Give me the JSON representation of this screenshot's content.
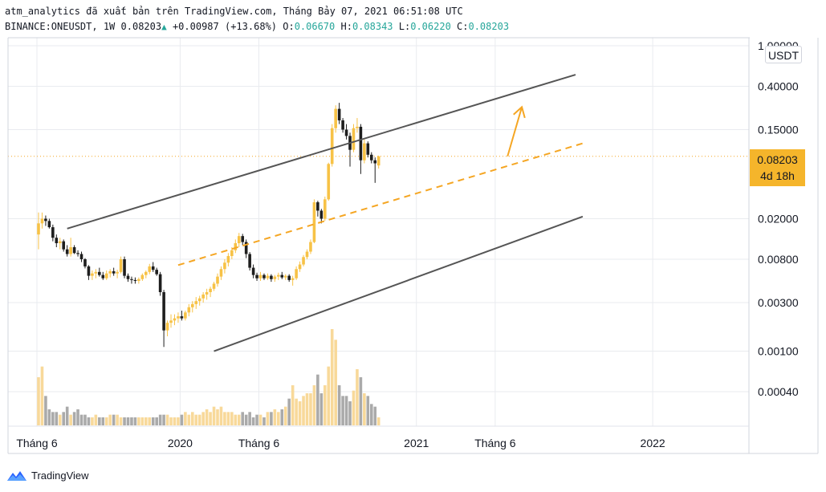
{
  "header": {
    "line1": "atm_analytics đã xuất bản trên TradingView.com, Tháng Bảy 07, 2021 06:51:08 UTC",
    "symbol": "BINANCE:ONEUSDT, 1W",
    "last": "0.08203",
    "change_arrow": "▲",
    "change": "+0.00987 (+13.68%)",
    "open_label": "O:",
    "open": "0.06670",
    "high_label": "H:",
    "high": "0.08343",
    "low_label": "L:",
    "low": "0.06220",
    "close_label": "C:",
    "close": "0.08203"
  },
  "price_pill": {
    "price": "0.08203",
    "countdown": "4d 18h"
  },
  "unit": "USDT",
  "footer": {
    "brand": "TradingView",
    "logo_icon": "tradingview-logo-icon"
  },
  "colors": {
    "bull": "#f7c246",
    "bear": "#1e1e1e",
    "vol_bull": "#f8d99a",
    "vol_bear": "#aaaaaa",
    "channel": "#555555",
    "midline": "#f5a623",
    "price_line": "#f5a623",
    "grid": "#e9ebef"
  },
  "chart_data": {
    "type": "candlestick",
    "symbol": "BINANCE:ONEUSDT",
    "interval": "1W",
    "y_scale": "log",
    "ylim": [
      0.00015,
      1.0
    ],
    "y_ticks": [
      "1.00000",
      "0.40000",
      "0.15000",
      "0.02000",
      "0.00800",
      "0.00300",
      "0.00100",
      "0.00040"
    ],
    "x_ticks": [
      "Tháng 6",
      "2020",
      "Tháng 6",
      "2021",
      "Tháng 6",
      "2022"
    ],
    "last_price": 0.08203,
    "candle_width_weeks": 1,
    "candles_start_week": 0,
    "candles": [
      [
        0.014,
        0.023,
        0.01,
        0.018
      ],
      [
        0.018,
        0.023,
        0.016,
        0.02
      ],
      [
        0.02,
        0.0215,
        0.017,
        0.019
      ],
      [
        0.019,
        0.02,
        0.016,
        0.0165
      ],
      [
        0.0165,
        0.0175,
        0.012,
        0.013
      ],
      [
        0.013,
        0.014,
        0.0105,
        0.0115
      ],
      [
        0.0115,
        0.013,
        0.01,
        0.012
      ],
      [
        0.012,
        0.0125,
        0.0095,
        0.01
      ],
      [
        0.01,
        0.011,
        0.0085,
        0.009
      ],
      [
        0.009,
        0.013,
        0.0085,
        0.0105
      ],
      [
        0.0105,
        0.011,
        0.009,
        0.0092
      ],
      [
        0.0092,
        0.0098,
        0.0085,
        0.009
      ],
      [
        0.009,
        0.0095,
        0.0075,
        0.008
      ],
      [
        0.008,
        0.0082,
        0.0065,
        0.0068
      ],
      [
        0.0068,
        0.007,
        0.005,
        0.0055
      ],
      [
        0.0055,
        0.0062,
        0.005,
        0.0058
      ],
      [
        0.0058,
        0.0064,
        0.0052,
        0.006
      ],
      [
        0.006,
        0.0066,
        0.0054,
        0.0056
      ],
      [
        0.0056,
        0.006,
        0.005,
        0.0052
      ],
      [
        0.0052,
        0.0062,
        0.005,
        0.0058
      ],
      [
        0.0058,
        0.0064,
        0.0053,
        0.0061
      ],
      [
        0.0061,
        0.0066,
        0.0055,
        0.0058
      ],
      [
        0.0058,
        0.0063,
        0.0052,
        0.006
      ],
      [
        0.006,
        0.0085,
        0.0058,
        0.008
      ],
      [
        0.008,
        0.0085,
        0.0052,
        0.0055
      ],
      [
        0.0055,
        0.0058,
        0.0048,
        0.0051
      ],
      [
        0.0051,
        0.0054,
        0.0046,
        0.005
      ],
      [
        0.005,
        0.0053,
        0.0046,
        0.0049
      ],
      [
        0.0049,
        0.0053,
        0.0046,
        0.0051
      ],
      [
        0.0051,
        0.0058,
        0.0049,
        0.0056
      ],
      [
        0.0056,
        0.0062,
        0.0052,
        0.006
      ],
      [
        0.006,
        0.0072,
        0.0057,
        0.0068
      ],
      [
        0.0068,
        0.0075,
        0.006,
        0.0063
      ],
      [
        0.0063,
        0.0066,
        0.0055,
        0.0057
      ],
      [
        0.0057,
        0.006,
        0.0035,
        0.0038
      ],
      [
        0.0038,
        0.004,
        0.0011,
        0.0016
      ],
      [
        0.0016,
        0.002,
        0.0014,
        0.0019
      ],
      [
        0.0019,
        0.0023,
        0.0017,
        0.002
      ],
      [
        0.002,
        0.0023,
        0.0018,
        0.0021
      ],
      [
        0.0021,
        0.0024,
        0.0019,
        0.0022
      ],
      [
        0.0022,
        0.0025,
        0.002,
        0.0021
      ],
      [
        0.0021,
        0.0025,
        0.002,
        0.0024
      ],
      [
        0.0024,
        0.0029,
        0.0022,
        0.0027
      ],
      [
        0.0027,
        0.0031,
        0.0024,
        0.0029
      ],
      [
        0.0029,
        0.0034,
        0.0026,
        0.0031
      ],
      [
        0.0031,
        0.0035,
        0.0028,
        0.0033
      ],
      [
        0.0033,
        0.0038,
        0.003,
        0.0036
      ],
      [
        0.0036,
        0.0041,
        0.0032,
        0.0038
      ],
      [
        0.0038,
        0.0043,
        0.0034,
        0.0041
      ],
      [
        0.0041,
        0.0048,
        0.0039,
        0.0046
      ],
      [
        0.0046,
        0.0058,
        0.0043,
        0.0054
      ],
      [
        0.0054,
        0.0068,
        0.005,
        0.0064
      ],
      [
        0.0064,
        0.008,
        0.0058,
        0.0074
      ],
      [
        0.0074,
        0.0092,
        0.0068,
        0.0086
      ],
      [
        0.0086,
        0.0105,
        0.008,
        0.0098
      ],
      [
        0.0098,
        0.0125,
        0.0092,
        0.0115
      ],
      [
        0.0115,
        0.0145,
        0.0105,
        0.0135
      ],
      [
        0.0135,
        0.0142,
        0.011,
        0.0118
      ],
      [
        0.0118,
        0.0125,
        0.0082,
        0.009
      ],
      [
        0.009,
        0.0094,
        0.0062,
        0.0066
      ],
      [
        0.0066,
        0.0071,
        0.0052,
        0.0056
      ],
      [
        0.0056,
        0.0059,
        0.0049,
        0.0052
      ],
      [
        0.0052,
        0.006,
        0.0049,
        0.0056
      ],
      [
        0.0056,
        0.0058,
        0.005,
        0.0052
      ],
      [
        0.0052,
        0.0058,
        0.005,
        0.0055
      ],
      [
        0.0055,
        0.0057,
        0.0048,
        0.0051
      ],
      [
        0.0051,
        0.0056,
        0.0048,
        0.0054
      ],
      [
        0.0054,
        0.0059,
        0.005,
        0.0056
      ],
      [
        0.0056,
        0.006,
        0.0051,
        0.0053
      ],
      [
        0.0053,
        0.0057,
        0.005,
        0.0055
      ],
      [
        0.0055,
        0.0057,
        0.0048,
        0.005
      ],
      [
        0.005,
        0.0055,
        0.0044,
        0.0052
      ],
      [
        0.0052,
        0.0068,
        0.005,
        0.0064
      ],
      [
        0.0064,
        0.0076,
        0.006,
        0.0071
      ],
      [
        0.0071,
        0.0088,
        0.0068,
        0.0084
      ],
      [
        0.0084,
        0.01,
        0.008,
        0.0095
      ],
      [
        0.0095,
        0.0125,
        0.009,
        0.0118
      ],
      [
        0.0118,
        0.031,
        0.0115,
        0.029
      ],
      [
        0.029,
        0.03,
        0.021,
        0.024
      ],
      [
        0.024,
        0.025,
        0.018,
        0.02
      ],
      [
        0.02,
        0.033,
        0.019,
        0.031
      ],
      [
        0.031,
        0.071,
        0.03,
        0.069
      ],
      [
        0.069,
        0.17,
        0.065,
        0.155
      ],
      [
        0.155,
        0.26,
        0.14,
        0.24
      ],
      [
        0.24,
        0.275,
        0.17,
        0.185
      ],
      [
        0.185,
        0.195,
        0.14,
        0.15
      ],
      [
        0.15,
        0.17,
        0.12,
        0.13
      ],
      [
        0.13,
        0.14,
        0.065,
        0.095
      ],
      [
        0.095,
        0.17,
        0.09,
        0.155
      ],
      [
        0.155,
        0.195,
        0.14,
        0.16
      ],
      [
        0.16,
        0.17,
        0.055,
        0.075
      ],
      [
        0.075,
        0.12,
        0.07,
        0.11
      ],
      [
        0.11,
        0.115,
        0.08,
        0.085
      ],
      [
        0.085,
        0.09,
        0.07,
        0.075
      ],
      [
        0.075,
        0.08,
        0.045,
        0.07
      ],
      [
        0.0667,
        0.0834,
        0.0622,
        0.082
      ]
    ],
    "volumes": [
      0.18,
      0.22,
      0.11,
      0.06,
      0.05,
      0.05,
      0.04,
      0.05,
      0.07,
      0.04,
      0.05,
      0.06,
      0.04,
      0.04,
      0.03,
      0.03,
      0.04,
      0.03,
      0.03,
      0.03,
      0.04,
      0.04,
      0.04,
      0.03,
      0.03,
      0.03,
      0.03,
      0.03,
      0.03,
      0.03,
      0.03,
      0.03,
      0.03,
      0.03,
      0.04,
      0.04,
      0.04,
      0.03,
      0.03,
      0.03,
      0.04,
      0.05,
      0.04,
      0.05,
      0.04,
      0.04,
      0.05,
      0.06,
      0.05,
      0.07,
      0.06,
      0.07,
      0.05,
      0.05,
      0.05,
      0.04,
      0.04,
      0.05,
      0.04,
      0.05,
      0.03,
      0.04,
      0.04,
      0.03,
      0.05,
      0.05,
      0.06,
      0.05,
      0.06,
      0.07,
      0.1,
      0.15,
      0.1,
      0.09,
      0.11,
      0.12,
      0.12,
      0.15,
      0.19,
      0.12,
      0.15,
      0.22,
      0.36,
      0.32,
      0.15,
      0.11,
      0.11,
      0.09,
      0.13,
      0.21,
      0.18,
      0.12,
      0.11,
      0.08,
      0.07,
      0.03
    ],
    "drawings": [
      {
        "type": "trendline",
        "name": "channel-upper",
        "points": [
          [
            8,
            0.016
          ],
          [
            150,
            0.52
          ]
        ]
      },
      {
        "type": "trendline",
        "name": "channel-lower",
        "points": [
          [
            49,
            0.001
          ],
          [
            152,
            0.021
          ]
        ]
      },
      {
        "type": "trendline-dashed",
        "name": "channel-midline",
        "points": [
          [
            39,
            0.007
          ],
          [
            152,
            0.11
          ]
        ]
      },
      {
        "type": "arrow",
        "name": "projection-arrow",
        "points": [
          [
            131,
            0.082
          ],
          [
            135,
            0.25
          ]
        ]
      }
    ]
  }
}
